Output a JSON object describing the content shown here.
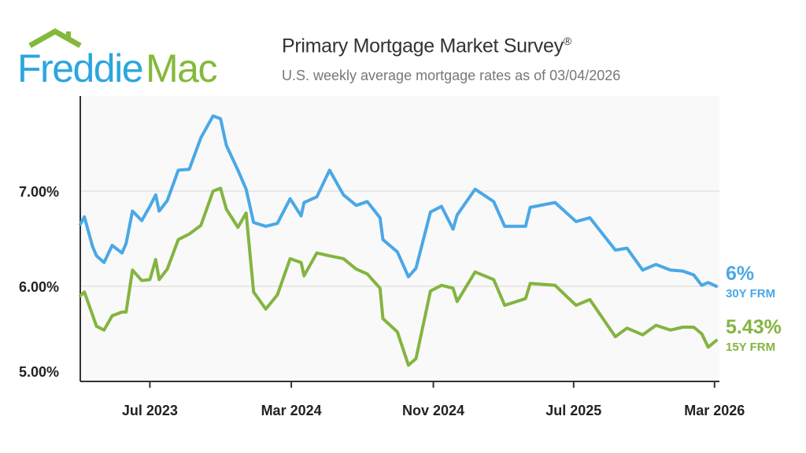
{
  "logo": {
    "text_left": "Freddie",
    "text_right": "Mac",
    "colors": {
      "left": "#2ba6de",
      "right": "#84b93b"
    }
  },
  "header": {
    "title": "Primary Mortgage Market Survey",
    "title_mark": "®",
    "subtitle": "U.S. weekly average mortgage rates as of 03/04/2026"
  },
  "chart_data": {
    "type": "line",
    "title": "Primary Mortgage Market Survey®",
    "subtitle": "U.S. weekly average mortgage rates as of 03/04/2026",
    "xlabel": "",
    "ylabel": "",
    "xlim": [
      "2023-03-03",
      "2026-03-04"
    ],
    "ylim": [
      5.0,
      8.0
    ],
    "grid": "horizontal",
    "legend": "right end labels",
    "x_ticks": [
      {
        "date": "2023-07-01",
        "label": "Jul 2023"
      },
      {
        "date": "2024-03-01",
        "label": "Mar 2024"
      },
      {
        "date": "2024-11-01",
        "label": "Nov 2024"
      },
      {
        "date": "2025-07-01",
        "label": "Jul 2025"
      },
      {
        "date": "2026-03-01",
        "label": "Mar 2026"
      }
    ],
    "y_ticks": [
      {
        "value": 5.0,
        "label": "5.00%"
      },
      {
        "value": 6.0,
        "label": "6.00%"
      },
      {
        "value": 7.0,
        "label": "7.00%"
      }
    ],
    "x": [
      "2023-03-03",
      "2023-03-10",
      "2023-03-24",
      "2023-03-31",
      "2023-04-13",
      "2023-04-27",
      "2023-05-14",
      "2023-05-21",
      "2023-06-01",
      "2023-06-17",
      "2023-07-01",
      "2023-07-11",
      "2023-07-17",
      "2023-07-31",
      "2023-08-19",
      "2023-09-07",
      "2023-09-27",
      "2023-10-18",
      "2023-10-31",
      "2023-11-10",
      "2023-11-30",
      "2023-12-14",
      "2023-12-27",
      "2024-01-17",
      "2024-02-06",
      "2024-02-28",
      "2024-03-18",
      "2024-03-23",
      "2024-04-14",
      "2024-05-06",
      "2024-05-30",
      "2024-06-21",
      "2024-07-10",
      "2024-08-01",
      "2024-08-06",
      "2024-08-31",
      "2024-09-19",
      "2024-10-02",
      "2024-10-27",
      "2024-11-15",
      "2024-12-05",
      "2024-12-12",
      "2025-01-12",
      "2025-02-13",
      "2025-03-04",
      "2025-04-09",
      "2025-04-17",
      "2025-05-30",
      "2025-07-05",
      "2025-07-29",
      "2025-09-11",
      "2025-10-01",
      "2025-10-28",
      "2025-11-20",
      "2025-12-15",
      "2026-01-05",
      "2026-01-24",
      "2026-02-07",
      "2026-02-18",
      "2026-03-04"
    ],
    "series": [
      {
        "name": "30Y FRM",
        "color": "#4aa8e6",
        "end_label": "6%",
        "values": [
          6.65,
          6.73,
          6.42,
          6.32,
          6.25,
          6.43,
          6.35,
          6.45,
          6.79,
          6.69,
          6.84,
          6.96,
          6.79,
          6.9,
          7.22,
          7.23,
          7.56,
          7.79,
          7.76,
          7.48,
          7.22,
          7.02,
          6.67,
          6.63,
          6.66,
          6.92,
          6.74,
          6.88,
          6.94,
          7.22,
          6.96,
          6.85,
          6.89,
          6.72,
          6.49,
          6.36,
          6.1,
          6.19,
          6.78,
          6.84,
          6.6,
          6.75,
          7.02,
          6.89,
          6.63,
          6.63,
          6.83,
          6.88,
          6.68,
          6.72,
          6.38,
          6.4,
          6.17,
          6.23,
          6.17,
          6.16,
          6.12,
          6.01,
          6.04,
          6.0
        ]
      },
      {
        "name": "15Y FRM",
        "color": "#84b440",
        "end_label": "5.43%",
        "values": [
          5.9,
          5.94,
          5.7,
          5.58,
          5.54,
          5.69,
          5.73,
          5.73,
          6.17,
          6.06,
          6.07,
          6.28,
          6.07,
          6.18,
          6.49,
          6.55,
          6.64,
          7.0,
          7.03,
          6.81,
          6.62,
          6.77,
          5.94,
          5.76,
          5.91,
          6.29,
          6.25,
          6.11,
          6.35,
          6.32,
          6.29,
          6.18,
          6.13,
          5.98,
          5.66,
          5.52,
          5.17,
          5.24,
          5.95,
          6.01,
          5.98,
          5.84,
          6.15,
          6.07,
          5.8,
          5.87,
          6.03,
          6.01,
          5.8,
          5.86,
          5.47,
          5.56,
          5.49,
          5.59,
          5.54,
          5.57,
          5.57,
          5.5,
          5.36,
          5.43
        ]
      }
    ]
  }
}
